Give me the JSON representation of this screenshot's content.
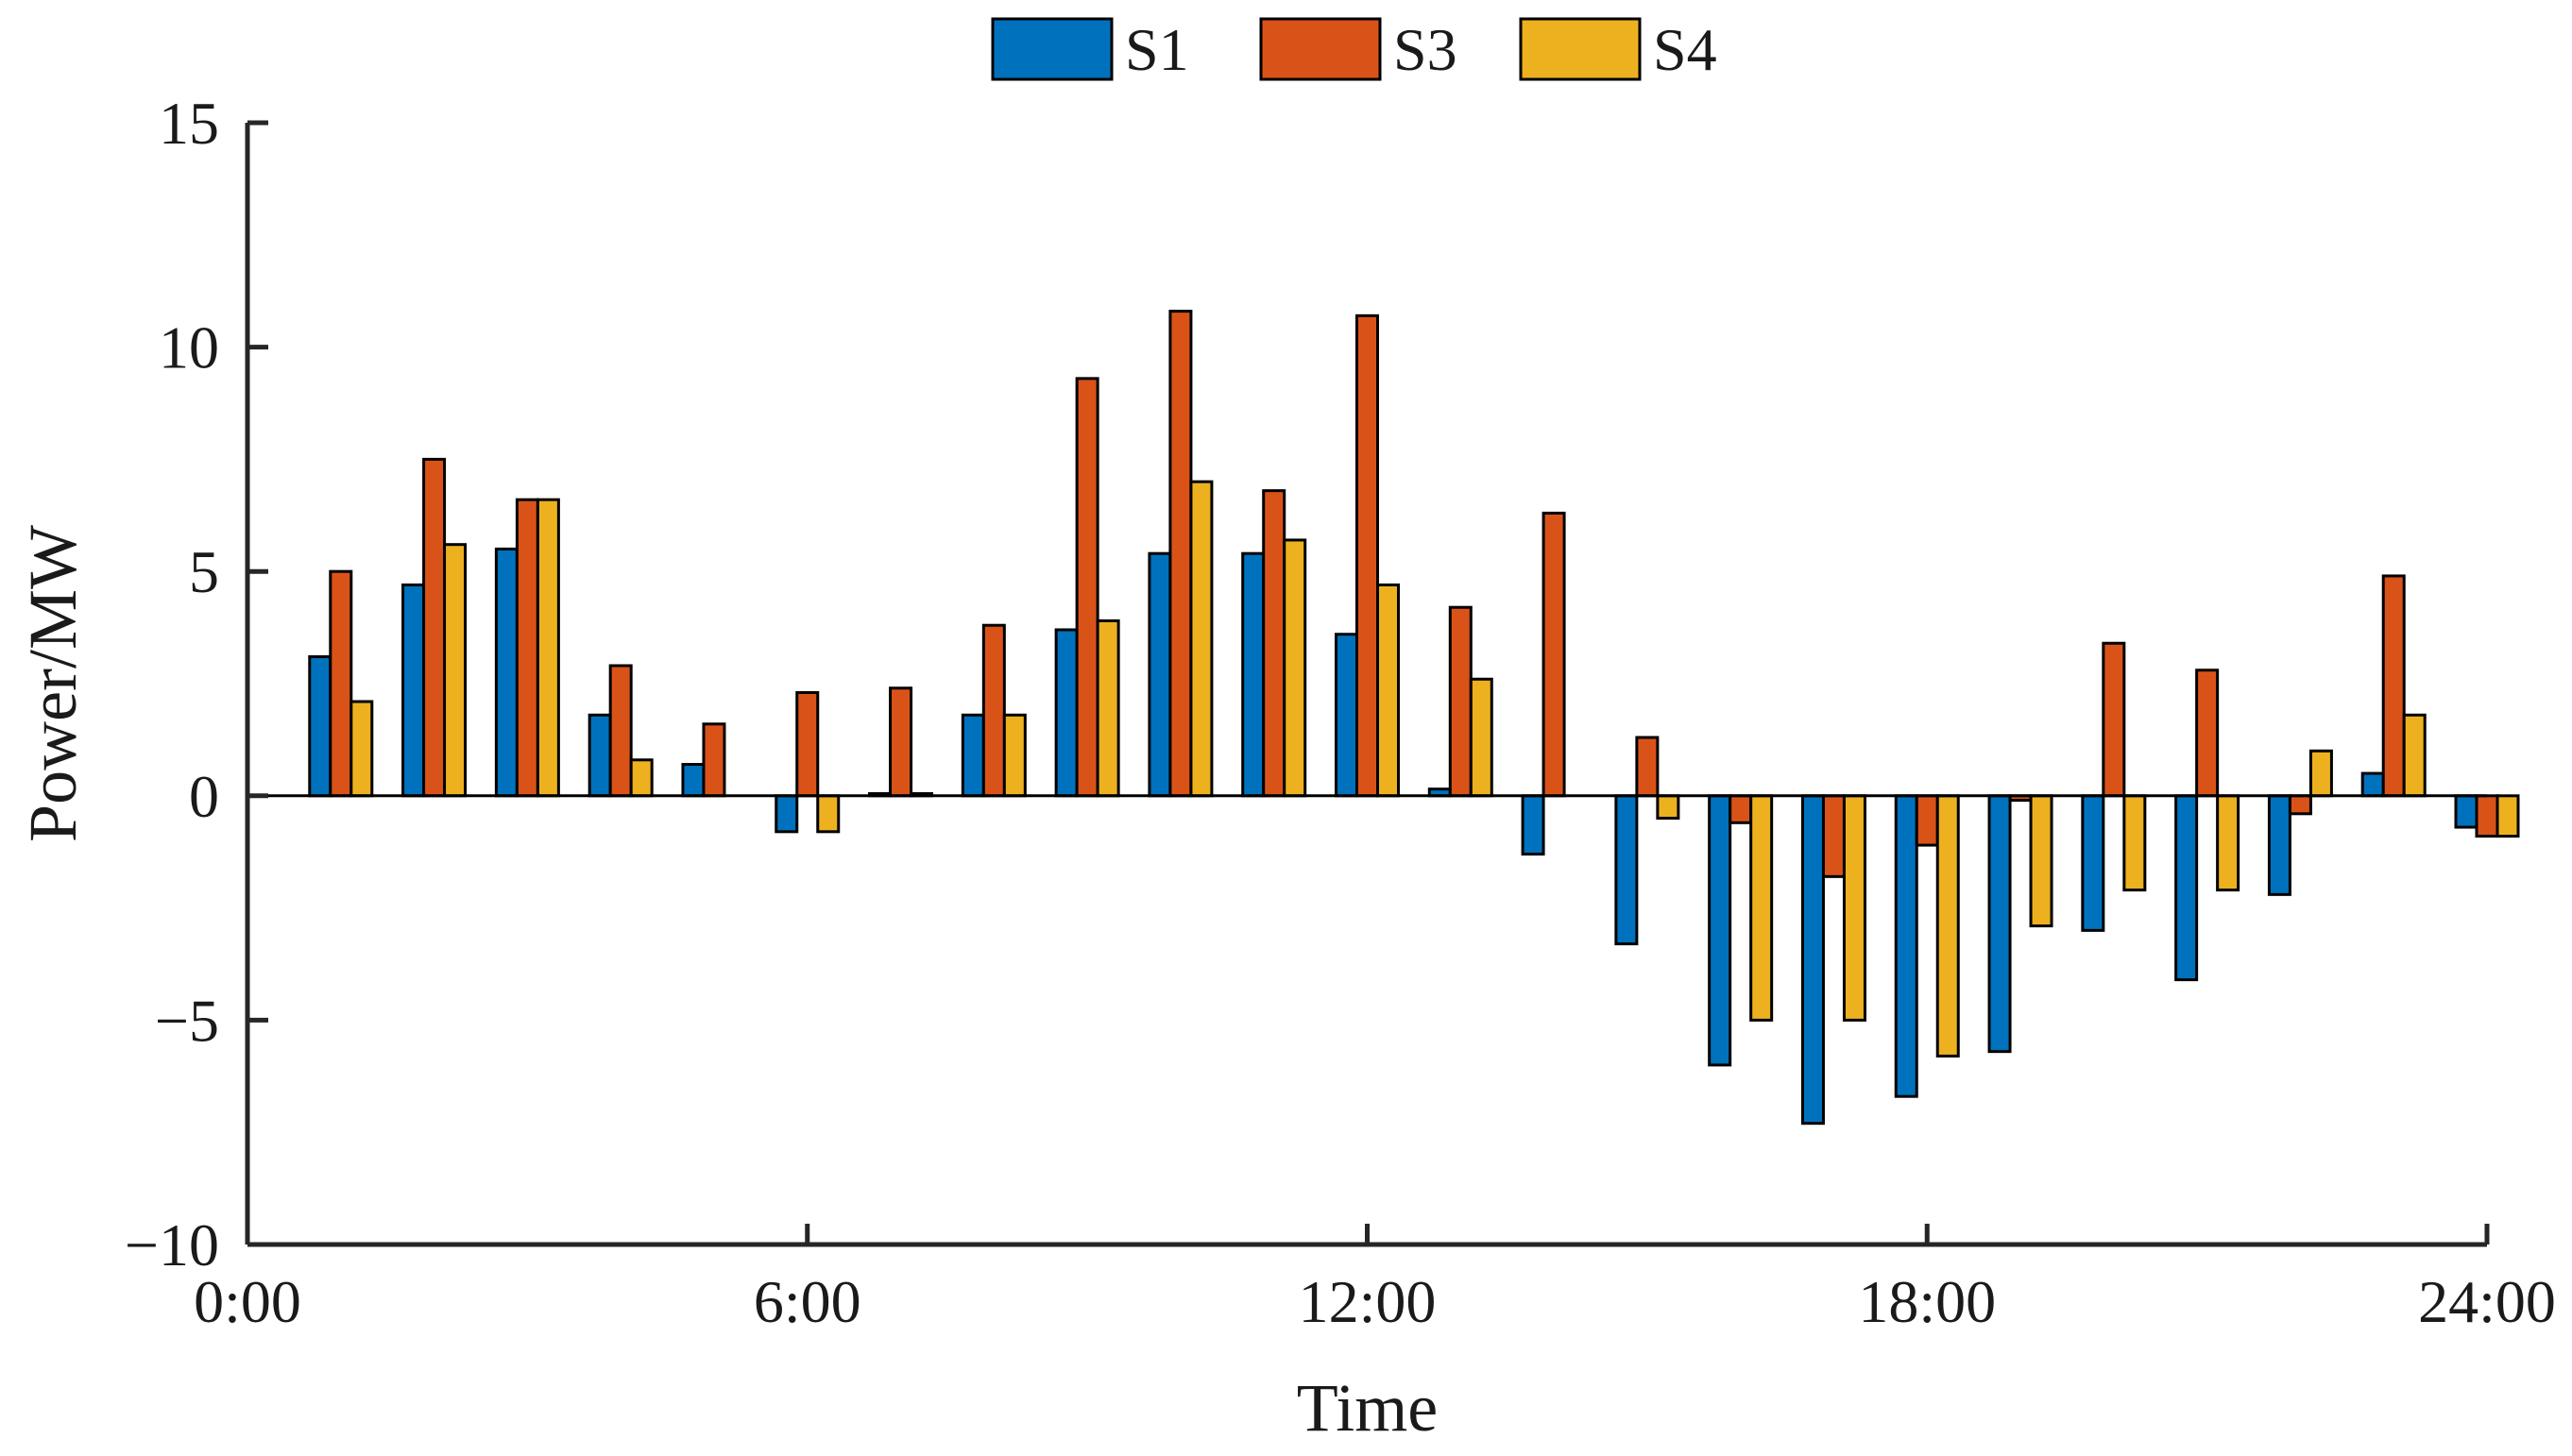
{
  "chart_data": {
    "type": "bar",
    "title": "",
    "xlabel": "Time",
    "ylabel": "Power/MW",
    "xlim": [
      0,
      24
    ],
    "ylim": [
      -10,
      15
    ],
    "x_ticks": [
      {
        "value": 0,
        "label": "0:00"
      },
      {
        "value": 6,
        "label": "6:00"
      },
      {
        "value": 12,
        "label": "12:00"
      },
      {
        "value": 18,
        "label": "18:00"
      },
      {
        "value": 24,
        "label": "24:00"
      }
    ],
    "y_ticks": [
      {
        "value": 15,
        "label": "15"
      },
      {
        "value": 10,
        "label": "10"
      },
      {
        "value": 5,
        "label": "5"
      },
      {
        "value": 0,
        "label": "0"
      },
      {
        "value": -5,
        "label": "−5"
      },
      {
        "value": -10,
        "label": "−10"
      }
    ],
    "x": [
      1,
      2,
      3,
      4,
      5,
      6,
      7,
      8,
      9,
      10,
      11,
      12,
      13,
      14,
      15,
      16,
      17,
      18,
      19,
      20,
      21,
      22,
      23,
      24
    ],
    "grid": false,
    "legend_position": "top-center",
    "series": [
      {
        "name": "S1",
        "color": "#0072BD",
        "values": [
          3.1,
          4.7,
          5.5,
          1.8,
          0.7,
          -0.8,
          0.05,
          1.8,
          3.7,
          5.4,
          5.4,
          3.6,
          0.15,
          -1.3,
          -3.3,
          -6.0,
          -7.3,
          -6.7,
          -5.7,
          -3.0,
          -4.1,
          -2.2,
          0.5,
          -0.7
        ]
      },
      {
        "name": "S3",
        "color": "#D95319",
        "values": [
          5.0,
          7.5,
          6.6,
          2.9,
          1.6,
          2.3,
          2.4,
          3.8,
          9.3,
          10.8,
          6.8,
          10.7,
          4.2,
          6.3,
          1.3,
          -0.6,
          -1.8,
          -1.1,
          -0.1,
          3.4,
          2.8,
          -0.4,
          4.9,
          -0.9
        ]
      },
      {
        "name": "S4",
        "color": "#EDB120",
        "values": [
          2.1,
          5.6,
          6.6,
          0.8,
          0.0,
          -0.8,
          0.05,
          1.8,
          3.9,
          7.0,
          5.7,
          4.7,
          2.6,
          0.0,
          -0.5,
          -5.0,
          -5.0,
          -5.8,
          -2.9,
          -2.1,
          -2.1,
          1.0,
          1.8,
          -0.9
        ]
      }
    ]
  }
}
